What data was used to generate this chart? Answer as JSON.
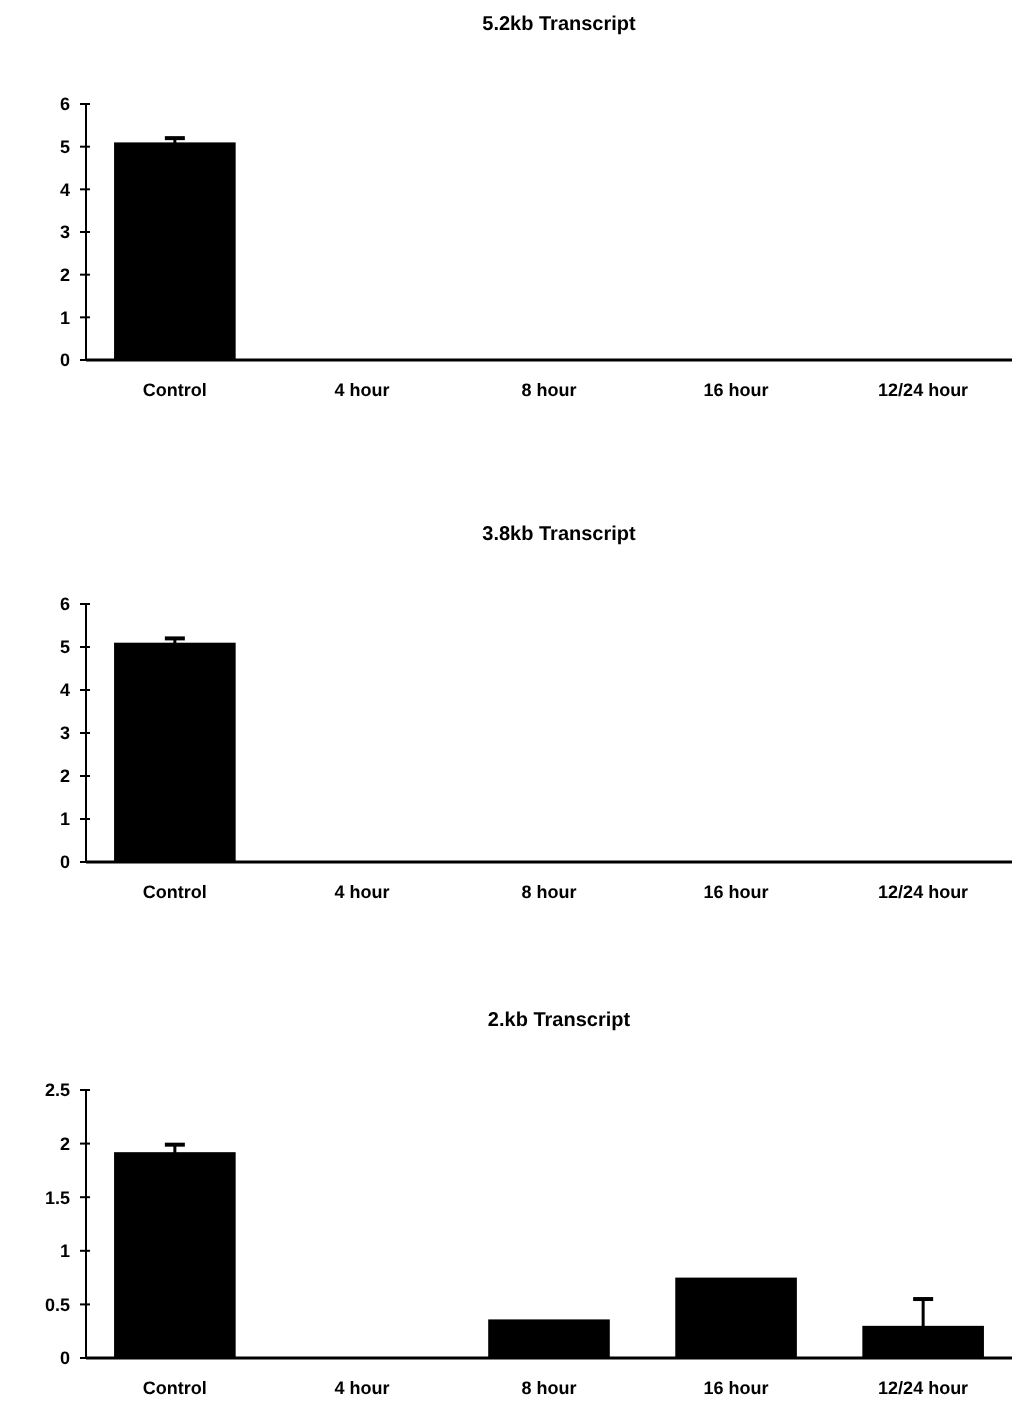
{
  "chart_data": [
    {
      "type": "bar",
      "title": "5.2kb Transcript",
      "categories": [
        "Control",
        "4 hour",
        "8 hour",
        "16 hour",
        "12/24 hour"
      ],
      "values": [
        5.1,
        0,
        0,
        0,
        0
      ],
      "errors": [
        0.1,
        null,
        null,
        null,
        null
      ],
      "color": "#000000",
      "ylim": [
        0,
        6
      ],
      "yticks": [
        0,
        1,
        2,
        3,
        4,
        5,
        6
      ],
      "grid": false
    },
    {
      "type": "bar",
      "title": "3.8kb Transcript",
      "categories": [
        "Control",
        "4 hour",
        "8 hour",
        "16 hour",
        "12/24 hour"
      ],
      "values": [
        5.1,
        0,
        0,
        0,
        0
      ],
      "errors": [
        0.1,
        null,
        null,
        null,
        null
      ],
      "color": "#000000",
      "ylim": [
        0,
        6
      ],
      "yticks": [
        0,
        1,
        2,
        3,
        4,
        5,
        6
      ],
      "grid": false
    },
    {
      "type": "bar",
      "title": "2.kb Transcript",
      "categories": [
        "Control",
        "4 hour",
        "8 hour",
        "16 hour",
        "12/24 hour"
      ],
      "values": [
        1.92,
        0,
        0.36,
        0.75,
        0.3
      ],
      "errors": [
        0.07,
        null,
        null,
        null,
        0.25
      ],
      "color": "#000000",
      "ylim": [
        0,
        2.5
      ],
      "yticks": [
        0,
        0.5,
        1,
        1.5,
        2,
        2.5
      ],
      "grid": false
    }
  ]
}
